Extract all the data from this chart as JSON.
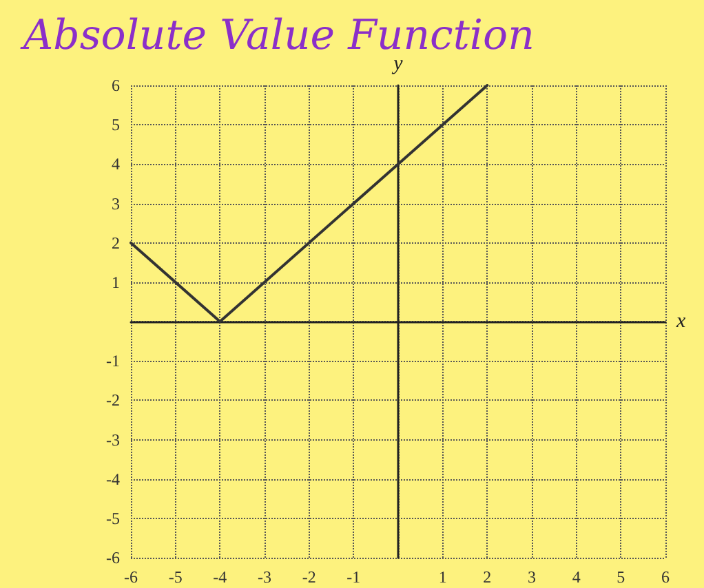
{
  "chart_data": {
    "type": "line",
    "title": "Absolute Value Function",
    "xlabel": "x",
    "ylabel": "y",
    "x": [
      -6,
      -4,
      2
    ],
    "series": [
      {
        "color": "#333333",
        "values": [
          2,
          0,
          6
        ]
      }
    ],
    "xlim": [
      -6,
      6
    ],
    "ylim": [
      -6,
      6
    ],
    "xticks": [
      -6,
      -5,
      -4,
      -3,
      -2,
      -1,
      {
        "value": 0,
        "label": null
      },
      1,
      2,
      3,
      4,
      5,
      6
    ],
    "yticks": [
      -6,
      -5,
      -4,
      -3,
      -2,
      -1,
      {
        "value": 0,
        "label": null
      },
      1,
      2,
      3,
      4,
      5,
      6
    ],
    "grid": true,
    "marker": "none",
    "line_style": "solid"
  }
}
